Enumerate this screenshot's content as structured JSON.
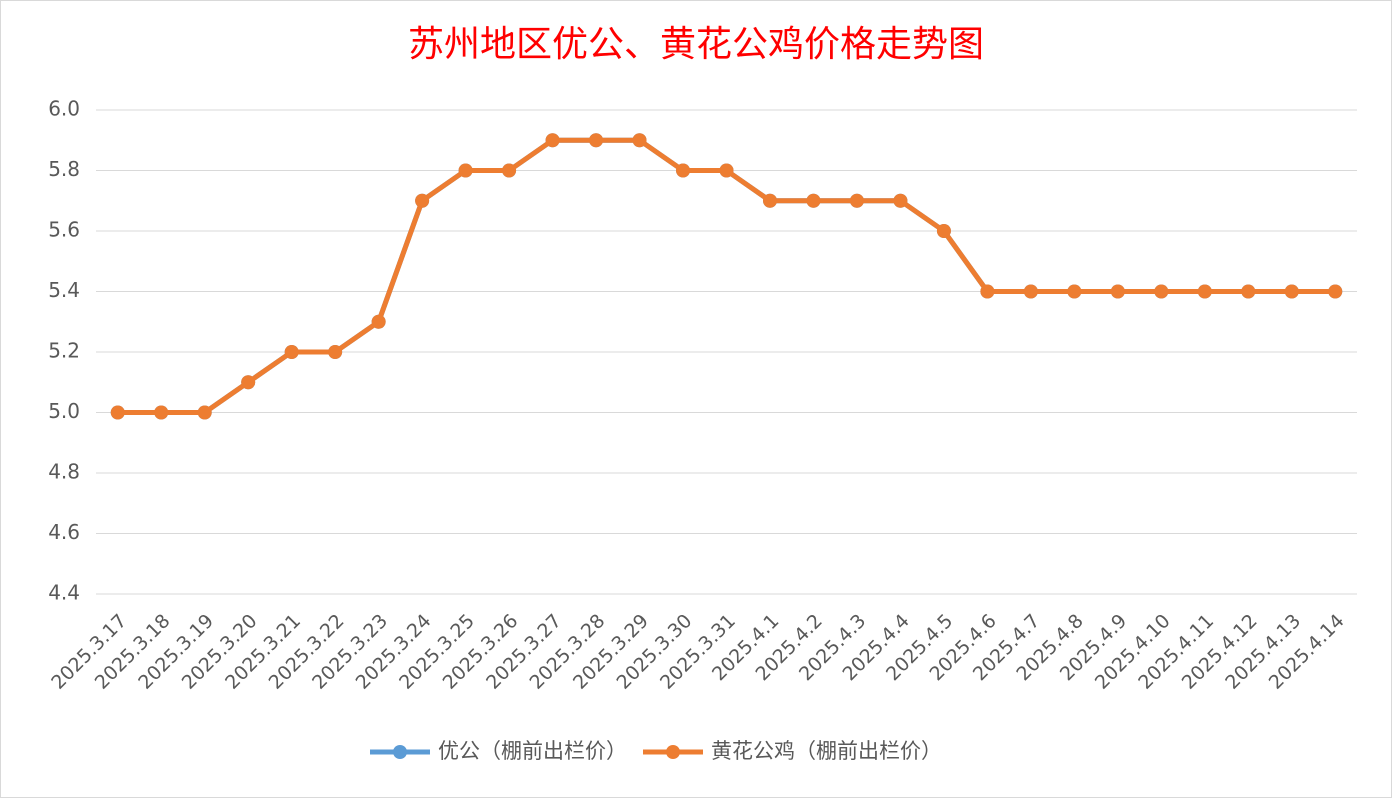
{
  "chart_data": {
    "type": "line",
    "title": "苏州地区优公、黄花公鸡价格走势图",
    "categories": [
      "2025.3.17",
      "2025.3.18",
      "2025.3.19",
      "2025.3.20",
      "2025.3.21",
      "2025.3.22",
      "2025.3.23",
      "2025.3.24",
      "2025.3.25",
      "2025.3.26",
      "2025.3.27",
      "2025.3.28",
      "2025.3.29",
      "2025.3.30",
      "2025.3.31",
      "2025.4.1",
      "2025.4.2",
      "2025.4.3",
      "2025.4.4",
      "2025.4.5",
      "2025.4.6",
      "2025.4.7",
      "2025.4.8",
      "2025.4.9",
      "2025.4.10",
      "2025.4.11",
      "2025.4.12",
      "2025.4.13",
      "2025.4.14"
    ],
    "series": [
      {
        "name": "优公（棚前出栏价）",
        "color": "#5b9bd5",
        "values": [
          5.0,
          5.0,
          5.0,
          5.1,
          5.2,
          5.2,
          5.3,
          5.7,
          5.8,
          5.8,
          5.9,
          5.9,
          5.9,
          5.8,
          5.8,
          5.7,
          5.7,
          5.7,
          5.7,
          5.6,
          5.4,
          5.4,
          5.4,
          5.4,
          5.4,
          5.4,
          5.4,
          5.4,
          5.4
        ]
      },
      {
        "name": "黄花公鸡（棚前出栏价）",
        "color": "#ed7d31",
        "values": [
          5.0,
          5.0,
          5.0,
          5.1,
          5.2,
          5.2,
          5.3,
          5.7,
          5.8,
          5.8,
          5.9,
          5.9,
          5.9,
          5.8,
          5.8,
          5.7,
          5.7,
          5.7,
          5.7,
          5.6,
          5.4,
          5.4,
          5.4,
          5.4,
          5.4,
          5.4,
          5.4,
          5.4,
          5.4
        ]
      }
    ],
    "ylim": [
      4.4,
      6.0
    ],
    "yticks": [
      4.4,
      4.6,
      4.8,
      {
        "value": 5.0,
        "label": "5.0"
      },
      5.2,
      5.4,
      5.6,
      5.8,
      {
        "value": 6.0,
        "label": "6.0"
      }
    ],
    "grid": true,
    "legend": "bottom"
  }
}
